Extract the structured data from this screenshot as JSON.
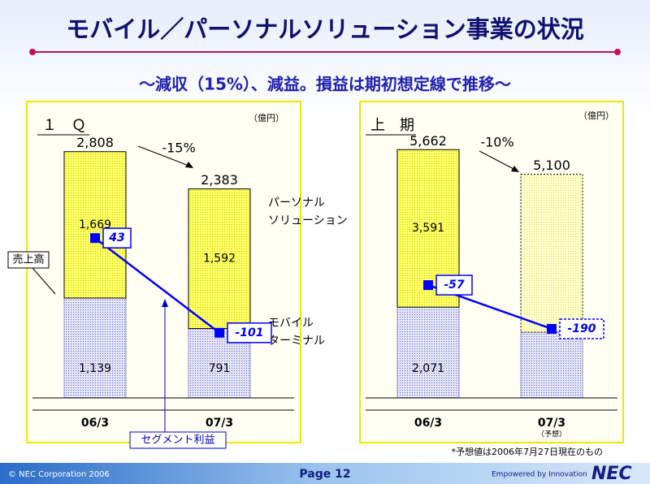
{
  "slide": {
    "title": "モバイル／パーソナルソリューション事業の状況",
    "subtitle": "～減収（15%）、減益。損益は期初想定線で推移～",
    "sales_label": "売上高",
    "profit_label": "セグメント利益",
    "footnote": "*予想値は2006年7月27日現在のもの",
    "copyright": "© NEC Corporation 2006",
    "page": "Page 12",
    "tagline": "Empowered by Innovation",
    "logo": "NEC"
  },
  "chart_data": [
    {
      "type": "stacked_bar",
      "title": "１　Ｑ",
      "unit": "（億円）",
      "categories": [
        "06/3",
        "07/3"
      ],
      "category_notes": [
        null,
        null
      ],
      "forecast": [
        false,
        false
      ],
      "series": [
        {
          "label_lines": [
            "モバイル",
            "ターミナル"
          ],
          "color": "#c8c8f4",
          "values": [
            1139,
            791
          ],
          "value_labels": [
            "1,139",
            "791"
          ]
        },
        {
          "label_lines": [
            "パーソナル",
            "ソリューション"
          ],
          "color": "#ffff66",
          "values": [
            1669,
            1592
          ],
          "value_labels": [
            "1,669",
            "1,592"
          ]
        }
      ],
      "totals": [
        2808,
        2383
      ],
      "total_labels": [
        "2,808",
        "2,383"
      ],
      "change": "-15%",
      "ylim": [
        0,
        3000
      ],
      "profit": {
        "color": "#0000ff",
        "values": [
          43,
          -101
        ],
        "y2lim": [
          -200,
          200
        ]
      }
    },
    {
      "type": "stacked_bar",
      "title": "上　期",
      "unit": "（億円）",
      "categories": [
        "06/3",
        "07/3"
      ],
      "category_notes": [
        null,
        "（予想）"
      ],
      "forecast": [
        false,
        true
      ],
      "series": [
        {
          "color": "#c8c8f4",
          "values": [
            2071,
            1500
          ],
          "value_labels": [
            "2,071",
            null
          ]
        },
        {
          "color": "#ffff66",
          "values": [
            3591,
            3600
          ],
          "value_labels": [
            "3,591",
            null
          ]
        }
      ],
      "totals": [
        5662,
        5100
      ],
      "total_labels": [
        "5,662",
        "5,100"
      ],
      "change": "-10%",
      "ylim": [
        0,
        6000
      ],
      "profit": {
        "color": "#0000ff",
        "values": [
          -57,
          -190
        ],
        "y2lim": [
          -400,
          400
        ]
      }
    }
  ]
}
